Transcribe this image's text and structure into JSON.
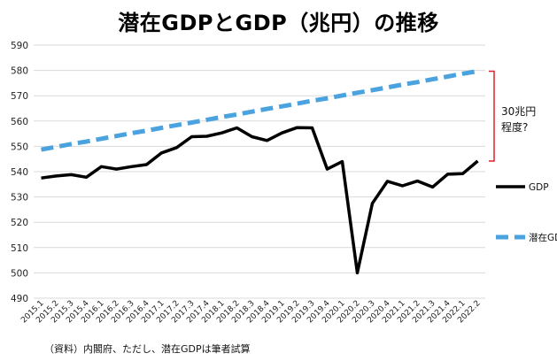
{
  "title": "潜在GDPとGDP（兆円）の推移",
  "source": "（資料）内閣府、ただし、潜在GDPは筆者試算",
  "annotation": {
    "line1": "30兆円",
    "line2": "程度?",
    "color": "#e0202a"
  },
  "chart_data": {
    "type": "line",
    "title": "潜在GDPとGDP（兆円）の推移",
    "ylim": [
      490,
      590
    ],
    "yticks": [
      490,
      500,
      510,
      520,
      530,
      540,
      550,
      560,
      570,
      580,
      590
    ],
    "grid": true,
    "legend": "right",
    "categories": [
      "2015.1",
      "2015.2",
      "2015.3",
      "2015.4",
      "2016.1",
      "2016.2",
      "2016.3",
      "2016.4",
      "2017.1",
      "2017.2",
      "2017.3",
      "2017.4",
      "2018.1",
      "2018.2",
      "2018.3",
      "2018.4",
      "2019.1",
      "2019.2",
      "2019.3",
      "2019.4",
      "2020.1",
      "2020.2",
      "2020.3",
      "2020.4",
      "2021.1",
      "2021.2",
      "2021.3",
      "2021.4",
      "2022.1",
      "2022.2"
    ],
    "series": [
      {
        "name": "GDP",
        "color": "#000000",
        "style": "solid",
        "values": [
          537.5,
          538.3,
          538.8,
          537.8,
          542.0,
          541.0,
          542.0,
          542.8,
          547.4,
          549.5,
          553.8,
          554.0,
          555.3,
          557.3,
          553.8,
          552.3,
          555.3,
          557.4,
          557.3,
          541.0,
          544.0,
          500.0,
          527.5,
          536.2,
          534.4,
          536.3,
          533.9,
          539.0,
          539.2,
          544.2
        ]
      },
      {
        "name": "潜在GDP",
        "color": "#4aa3df",
        "style": "dashed",
        "values": [
          548.7,
          549.8,
          550.9,
          551.9,
          553.0,
          554.1,
          555.2,
          556.2,
          557.3,
          558.4,
          559.4,
          560.5,
          561.6,
          562.6,
          563.7,
          564.8,
          565.8,
          566.9,
          568.0,
          569.0,
          570.1,
          571.2,
          572.2,
          573.3,
          574.4,
          575.4,
          576.5,
          577.6,
          578.7,
          579.7
        ]
      }
    ]
  }
}
